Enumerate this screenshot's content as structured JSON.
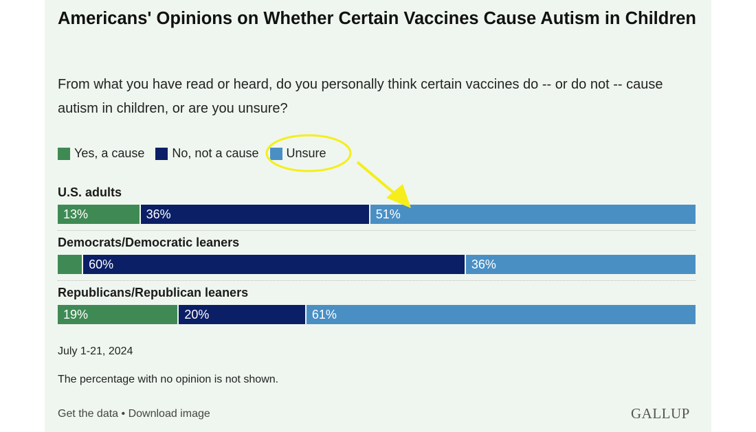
{
  "chart_data": {
    "type": "bar",
    "orientation": "horizontal-stacked",
    "title": "Americans' Opinions on Whether Certain Vaccines Cause Autism in Children",
    "subtitle": "From what you have read or heard, do you personally think certain vaccines do -- or do not -- cause autism in children, or are you unsure?",
    "categories": [
      "U.S. adults",
      "Democrats/Democratic leaners",
      "Republicans/Republican leaners"
    ],
    "series": [
      {
        "name": "Yes, a cause",
        "color": "#3f8a54",
        "values": [
          13,
          4,
          19
        ],
        "labels": [
          "13%",
          "",
          "19%"
        ]
      },
      {
        "name": "No, not a cause",
        "color": "#0b1f66",
        "values": [
          36,
          60,
          20
        ],
        "labels": [
          "36%",
          "60%",
          "20%"
        ]
      },
      {
        "name": "Unsure",
        "color": "#4a8fc4",
        "values": [
          51,
          36,
          61
        ],
        "labels": [
          "51%",
          "36%",
          "61%"
        ]
      }
    ],
    "xlim": [
      0,
      100
    ],
    "legend": "top-left"
  },
  "notes": {
    "date": "July 1-21, 2024",
    "footnote": "The percentage with no opinion is not shown."
  },
  "footer": {
    "get_data": "Get the data",
    "separator": "•",
    "download": "Download image",
    "logo": "GALLUP"
  },
  "annotation_color": "#f5ee1a"
}
